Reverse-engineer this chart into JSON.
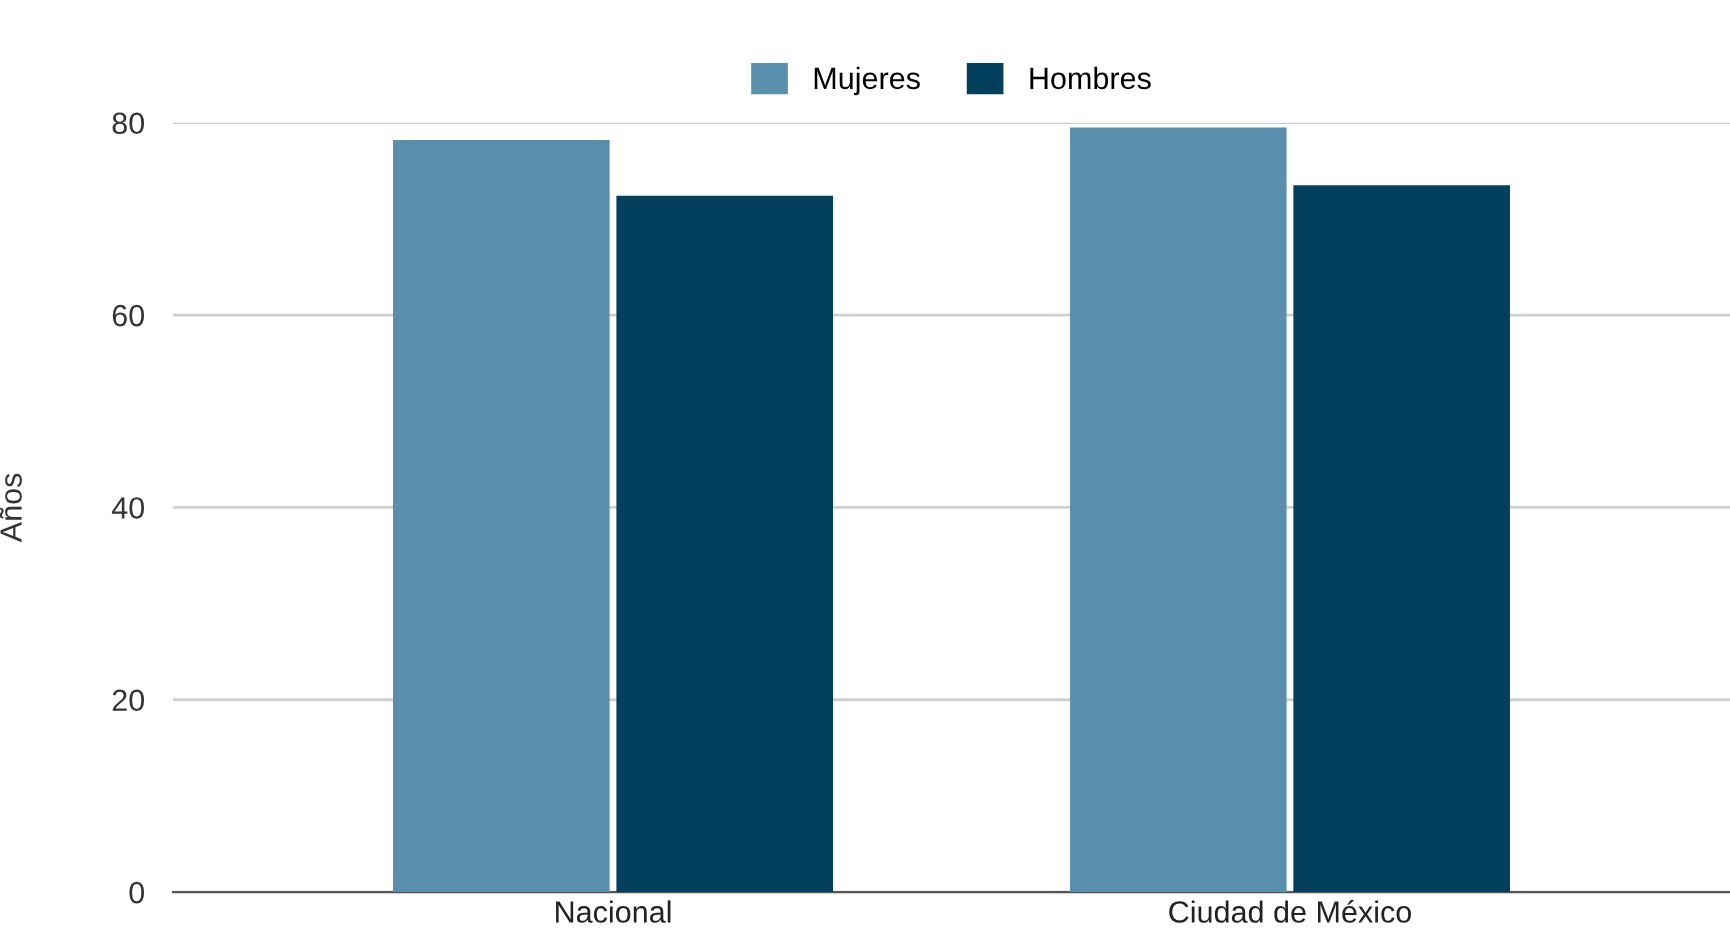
{
  "chart_data": {
    "type": "bar",
    "ylabel": "Años",
    "categories": [
      "Nacional",
      "Ciudad de México"
    ],
    "series": [
      {
        "name": "Mujeres",
        "color": "#5b8fae",
        "values": [
          78.2,
          79.5
        ]
      },
      {
        "name": "Hombres",
        "color": "#03405e",
        "values": [
          72.4,
          73.5
        ]
      }
    ],
    "ylim": [
      0,
      80
    ],
    "yticks": [
      0,
      20,
      40,
      60,
      80
    ],
    "grid": "y",
    "legend": "top"
  }
}
